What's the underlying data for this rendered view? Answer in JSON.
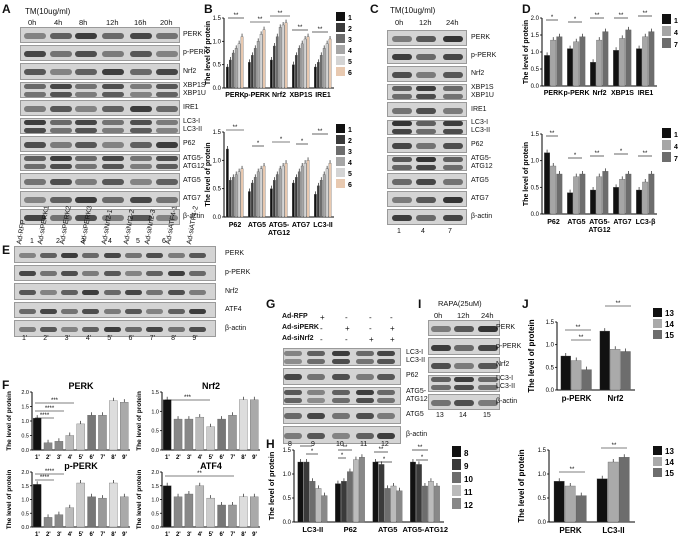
{
  "panels": {
    "A": {
      "letter": "A",
      "treatment": "TM(10ug/ml)",
      "times": [
        "0h",
        "4h",
        "8h",
        "12h",
        "16h",
        "20h"
      ],
      "rows": [
        "PERK",
        "p-PERK",
        "Nrf2",
        "XBP1S\nXBP1U",
        "IRE1",
        "LC3-I\nLC3-II",
        "P62",
        "ATG5-\nATG12",
        "ATG5",
        "ATG7",
        "β-actin"
      ],
      "lanes": [
        "1",
        "2",
        "3",
        "4",
        "5",
        "6"
      ]
    },
    "C": {
      "letter": "C",
      "treatment": "TM(10ug/ml)",
      "times": [
        "0h",
        "12h",
        "24h"
      ],
      "rows": [
        "PERK",
        "p-PERK",
        "Nrf2",
        "XBP1S\nXBP1U",
        "IRE1",
        "LC3-I\nLC3-II",
        "P62",
        "ATG5-\nATG12",
        "ATG5",
        "ATG7",
        "β-actin"
      ],
      "lanes": [
        "1",
        "4",
        "7"
      ]
    },
    "E": {
      "letter": "E",
      "conditions": [
        "Ad-RFP",
        "Ad-siPERK1",
        "Ad-siPERK2",
        "Ad-siPERK3",
        "Ad-siNrf2-1",
        "Ad-siNrf2-2",
        "Ad-siNrf2-3",
        "Ad-siATF4-1",
        "Ad-siATF4-2"
      ],
      "rows": [
        "PERK",
        "p-PERK",
        "Nrf2",
        "ATF4",
        "β-actin"
      ],
      "lanes": [
        "1'",
        "2'",
        "3'",
        "4'",
        "5'",
        "6'",
        "7'",
        "8'",
        "9'"
      ]
    },
    "G": {
      "letter": "G",
      "conditions": [
        "Ad-RFP",
        "Ad-siPERK",
        "Ad-siNrf2"
      ],
      "signs": [
        [
          "-",
          "+",
          "-",
          "-",
          "-"
        ],
        [
          "-",
          "-",
          "+",
          "-",
          "+"
        ],
        [
          "-",
          "-",
          "-",
          "+",
          "+"
        ]
      ],
      "rows": [
        "LC3-I\nLC3-II",
        "P62",
        "ATG5-\nATG12",
        "ATG5",
        "β-actin"
      ],
      "lanes": [
        "8",
        "9",
        "10",
        "11",
        "12"
      ]
    },
    "I": {
      "letter": "I",
      "treatment": "RAPA(25uM)",
      "times": [
        "0h",
        "12h",
        "24h"
      ],
      "rows": [
        "PERK",
        "p-PERK",
        "Nrf2",
        "LC3-I\nLC3-II",
        "β-actin"
      ],
      "lanes": [
        "13",
        "14",
        "15"
      ]
    }
  },
  "chart_data": [
    {
      "id": "B1",
      "letter": "B",
      "type": "bar",
      "ylabel": "The level of protein",
      "ylim": [
        0,
        1.5
      ],
      "yticks": [
        "0.0",
        "0.5",
        "1.0",
        "1.5"
      ],
      "categories": [
        "PERK",
        "p-PERK",
        "Nrf2",
        "XBP1S",
        "IRE1"
      ],
      "series": [
        {
          "name": "1",
          "values": [
            0.45,
            0.55,
            0.6,
            0.5,
            0.45
          ],
          "color": "#111111"
        },
        {
          "name": "2",
          "values": [
            0.6,
            0.7,
            0.9,
            0.7,
            0.55
          ],
          "color": "#3a3a3a"
        },
        {
          "name": "3",
          "values": [
            0.75,
            0.85,
            1.1,
            0.85,
            0.7
          ],
          "color": "#6d6d6d"
        },
        {
          "name": "4",
          "values": [
            0.85,
            1.0,
            1.3,
            0.95,
            0.85
          ],
          "color": "#a6a6a6"
        },
        {
          "name": "5",
          "values": [
            0.95,
            1.15,
            1.35,
            1.05,
            0.95
          ],
          "color": "#d4d4d4"
        },
        {
          "name": "6",
          "values": [
            1.1,
            1.25,
            1.4,
            1.1,
            1.05
          ],
          "color": "#e8c9b0"
        }
      ]
    },
    {
      "id": "B2",
      "letter": "",
      "type": "bar",
      "ylabel": "The level of protein",
      "ylim": [
        0,
        1.5
      ],
      "yticks": [
        "0.0",
        "0.5",
        "1.0",
        "1.5"
      ],
      "categories": [
        "P62",
        "ATG5",
        "ATG5-\nATG12",
        "ATG7",
        "LC3-II"
      ],
      "series": [
        {
          "name": "1",
          "values": [
            1.2,
            0.45,
            0.5,
            0.6,
            0.4
          ],
          "color": "#111111"
        },
        {
          "name": "2",
          "values": [
            0.65,
            0.6,
            0.65,
            0.7,
            0.55
          ],
          "color": "#3a3a3a"
        },
        {
          "name": "3",
          "values": [
            0.7,
            0.7,
            0.75,
            0.8,
            0.65
          ],
          "color": "#6d6d6d"
        },
        {
          "name": "4",
          "values": [
            0.75,
            0.8,
            0.85,
            0.9,
            0.75
          ],
          "color": "#a6a6a6"
        },
        {
          "name": "5",
          "values": [
            0.8,
            0.85,
            0.9,
            0.95,
            0.85
          ],
          "color": "#d4d4d4"
        },
        {
          "name": "6",
          "values": [
            0.85,
            0.9,
            0.95,
            1.0,
            0.95
          ],
          "color": "#e8c9b0"
        }
      ]
    },
    {
      "id": "D1",
      "letter": "D",
      "type": "bar",
      "ylabel": "The level of protein",
      "ylim": [
        0,
        2.0
      ],
      "yticks": [
        "0.0",
        "0.5",
        "1.0",
        "1.5",
        "2.0"
      ],
      "categories": [
        "PERK",
        "p-PERK",
        "Nrf2",
        "XBP1S",
        "IRE1"
      ],
      "series": [
        {
          "name": "1",
          "values": [
            0.9,
            1.1,
            0.7,
            1.05,
            1.1
          ],
          "color": "#111111"
        },
        {
          "name": "4",
          "values": [
            1.35,
            1.3,
            1.35,
            1.4,
            1.45
          ],
          "color": "#a6a6a6"
        },
        {
          "name": "7",
          "values": [
            1.45,
            1.45,
            1.6,
            1.65,
            1.6
          ],
          "color": "#6d6d6d"
        }
      ]
    },
    {
      "id": "D2",
      "letter": "",
      "type": "bar",
      "ylabel": "The level of protein",
      "ylim": [
        0,
        1.5
      ],
      "yticks": [
        "0.0",
        "0.5",
        "1.0",
        "1.5"
      ],
      "categories": [
        "P62",
        "ATG5",
        "ATG5-\nATG12",
        "ATG7",
        "LC3-β"
      ],
      "series": [
        {
          "name": "1",
          "values": [
            1.15,
            0.4,
            0.45,
            0.5,
            0.45
          ],
          "color": "#111111"
        },
        {
          "name": "4",
          "values": [
            0.9,
            0.7,
            0.7,
            0.65,
            0.6
          ],
          "color": "#a6a6a6"
        },
        {
          "name": "7",
          "values": [
            0.75,
            0.75,
            0.8,
            0.75,
            0.75
          ],
          "color": "#6d6d6d"
        }
      ]
    },
    {
      "id": "F1",
      "letter": "F",
      "type": "bar",
      "title": "PERK",
      "ylabel": "The level of protein",
      "ylim": [
        0,
        2.0
      ],
      "yticks": [
        "0.0",
        "0.5",
        "1.0",
        "1.5",
        "2.0"
      ],
      "categories": [
        "1'",
        "2'",
        "3'",
        "4'",
        "5'",
        "6'",
        "7'",
        "8'",
        "9'"
      ],
      "series": [
        {
          "name": "PERK",
          "values": [
            1.1,
            0.25,
            0.3,
            0.5,
            0.9,
            1.2,
            1.2,
            1.7,
            1.65
          ],
          "colors": [
            "#111111",
            "#888888",
            "#888888",
            "#bbbbbb",
            "#cccccc",
            "#777777",
            "#999999",
            "#dddddd",
            "#aaaaaa"
          ]
        }
      ]
    },
    {
      "id": "F2",
      "letter": "",
      "type": "bar",
      "title": "Nrf2",
      "ylabel": "The level of protein",
      "ylim": [
        0,
        1.5
      ],
      "yticks": [
        "0.0",
        "0.5",
        "1.0",
        "1.5"
      ],
      "categories": [
        "1'",
        "2'",
        "3'",
        "4'",
        "5'",
        "6'",
        "7'",
        "8'",
        "9'"
      ],
      "series": [
        {
          "name": "Nrf2",
          "values": [
            1.3,
            0.8,
            0.8,
            0.85,
            0.6,
            0.8,
            0.9,
            1.3,
            1.3
          ],
          "colors": [
            "#111111",
            "#888888",
            "#888888",
            "#bbbbbb",
            "#cccccc",
            "#777777",
            "#999999",
            "#dddddd",
            "#aaaaaa"
          ]
        }
      ]
    },
    {
      "id": "F3",
      "letter": "",
      "type": "bar",
      "title": "p-PERK",
      "ylabel": "The level of protein",
      "ylim": [
        0,
        2.0
      ],
      "yticks": [
        "0.0",
        "0.5",
        "1.0",
        "1.5",
        "2.0"
      ],
      "categories": [
        "1'",
        "2'",
        "3'",
        "4'",
        "5'",
        "6'",
        "7'",
        "8'",
        "9'"
      ],
      "series": [
        {
          "name": "p-PERK",
          "values": [
            1.55,
            0.35,
            0.45,
            0.7,
            1.6,
            1.1,
            1.05,
            1.6,
            1.1
          ],
          "colors": [
            "#111111",
            "#888888",
            "#888888",
            "#bbbbbb",
            "#cccccc",
            "#777777",
            "#999999",
            "#dddddd",
            "#aaaaaa"
          ]
        }
      ]
    },
    {
      "id": "F4",
      "letter": "",
      "type": "bar",
      "title": "ATF4",
      "ylabel": "The level of protein",
      "ylim": [
        0,
        2.0
      ],
      "yticks": [
        "0.0",
        "0.5",
        "1.0",
        "1.5",
        "2.0"
      ],
      "categories": [
        "1'",
        "2'",
        "3'",
        "4'",
        "5'",
        "6'",
        "7'",
        "8'",
        "9'"
      ],
      "series": [
        {
          "name": "ATF4",
          "values": [
            1.5,
            1.1,
            1.2,
            1.5,
            1.05,
            0.8,
            0.8,
            1.1,
            1.1
          ],
          "colors": [
            "#111111",
            "#888888",
            "#888888",
            "#bbbbbb",
            "#cccccc",
            "#777777",
            "#999999",
            "#dddddd",
            "#aaaaaa"
          ]
        }
      ]
    },
    {
      "id": "H1",
      "letter": "H",
      "type": "bar",
      "ylabel": "The level of protein",
      "ylim": [
        0,
        1.5
      ],
      "yticks": [
        "0.0",
        "0.5",
        "1.0",
        "1.5"
      ],
      "categories": [
        "LC3-II",
        "P62",
        "ATG5",
        "ATG5-ATG12"
      ],
      "series": [
        {
          "name": "8",
          "values": [
            1.25,
            0.8,
            1.25,
            1.25
          ],
          "color": "#111111"
        },
        {
          "name": "9",
          "values": [
            1.25,
            0.85,
            1.2,
            1.2
          ],
          "color": "#3a3a3a"
        },
        {
          "name": "10",
          "values": [
            0.85,
            1.05,
            0.7,
            0.75
          ],
          "color": "#6d6d6d"
        },
        {
          "name": "11",
          "values": [
            0.7,
            1.3,
            0.75,
            0.85
          ],
          "color": "#bbbbbb"
        },
        {
          "name": "12",
          "values": [
            0.55,
            1.35,
            0.65,
            0.75
          ],
          "color": "#888888"
        }
      ]
    },
    {
      "id": "J1",
      "letter": "J",
      "type": "bar",
      "ylabel": "The level of protein",
      "ylim": [
        0,
        1.5
      ],
      "yticks": [
        "0.0",
        "0.5",
        "1.0",
        "1.5"
      ],
      "categories": [
        "p-PERK",
        "Nrf2"
      ],
      "series": [
        {
          "name": "13",
          "values": [
            0.75,
            1.3
          ],
          "color": "#111111"
        },
        {
          "name": "14",
          "values": [
            0.65,
            0.9
          ],
          "color": "#aaaaaa"
        },
        {
          "name": "15",
          "values": [
            0.45,
            0.85
          ],
          "color": "#6d6d6d"
        }
      ]
    },
    {
      "id": "J2",
      "letter": "",
      "type": "bar",
      "ylabel": "The level of protein",
      "ylim": [
        0,
        1.5
      ],
      "yticks": [
        "0.0",
        "0.5",
        "1.0",
        "1.5"
      ],
      "categories": [
        "PERK",
        "LC3-II"
      ],
      "series": [
        {
          "name": "13",
          "values": [
            0.85,
            0.9
          ],
          "color": "#111111"
        },
        {
          "name": "14",
          "values": [
            0.75,
            1.25
          ],
          "color": "#aaaaaa"
        },
        {
          "name": "15",
          "values": [
            0.55,
            1.35
          ],
          "color": "#6d6d6d"
        }
      ]
    }
  ]
}
